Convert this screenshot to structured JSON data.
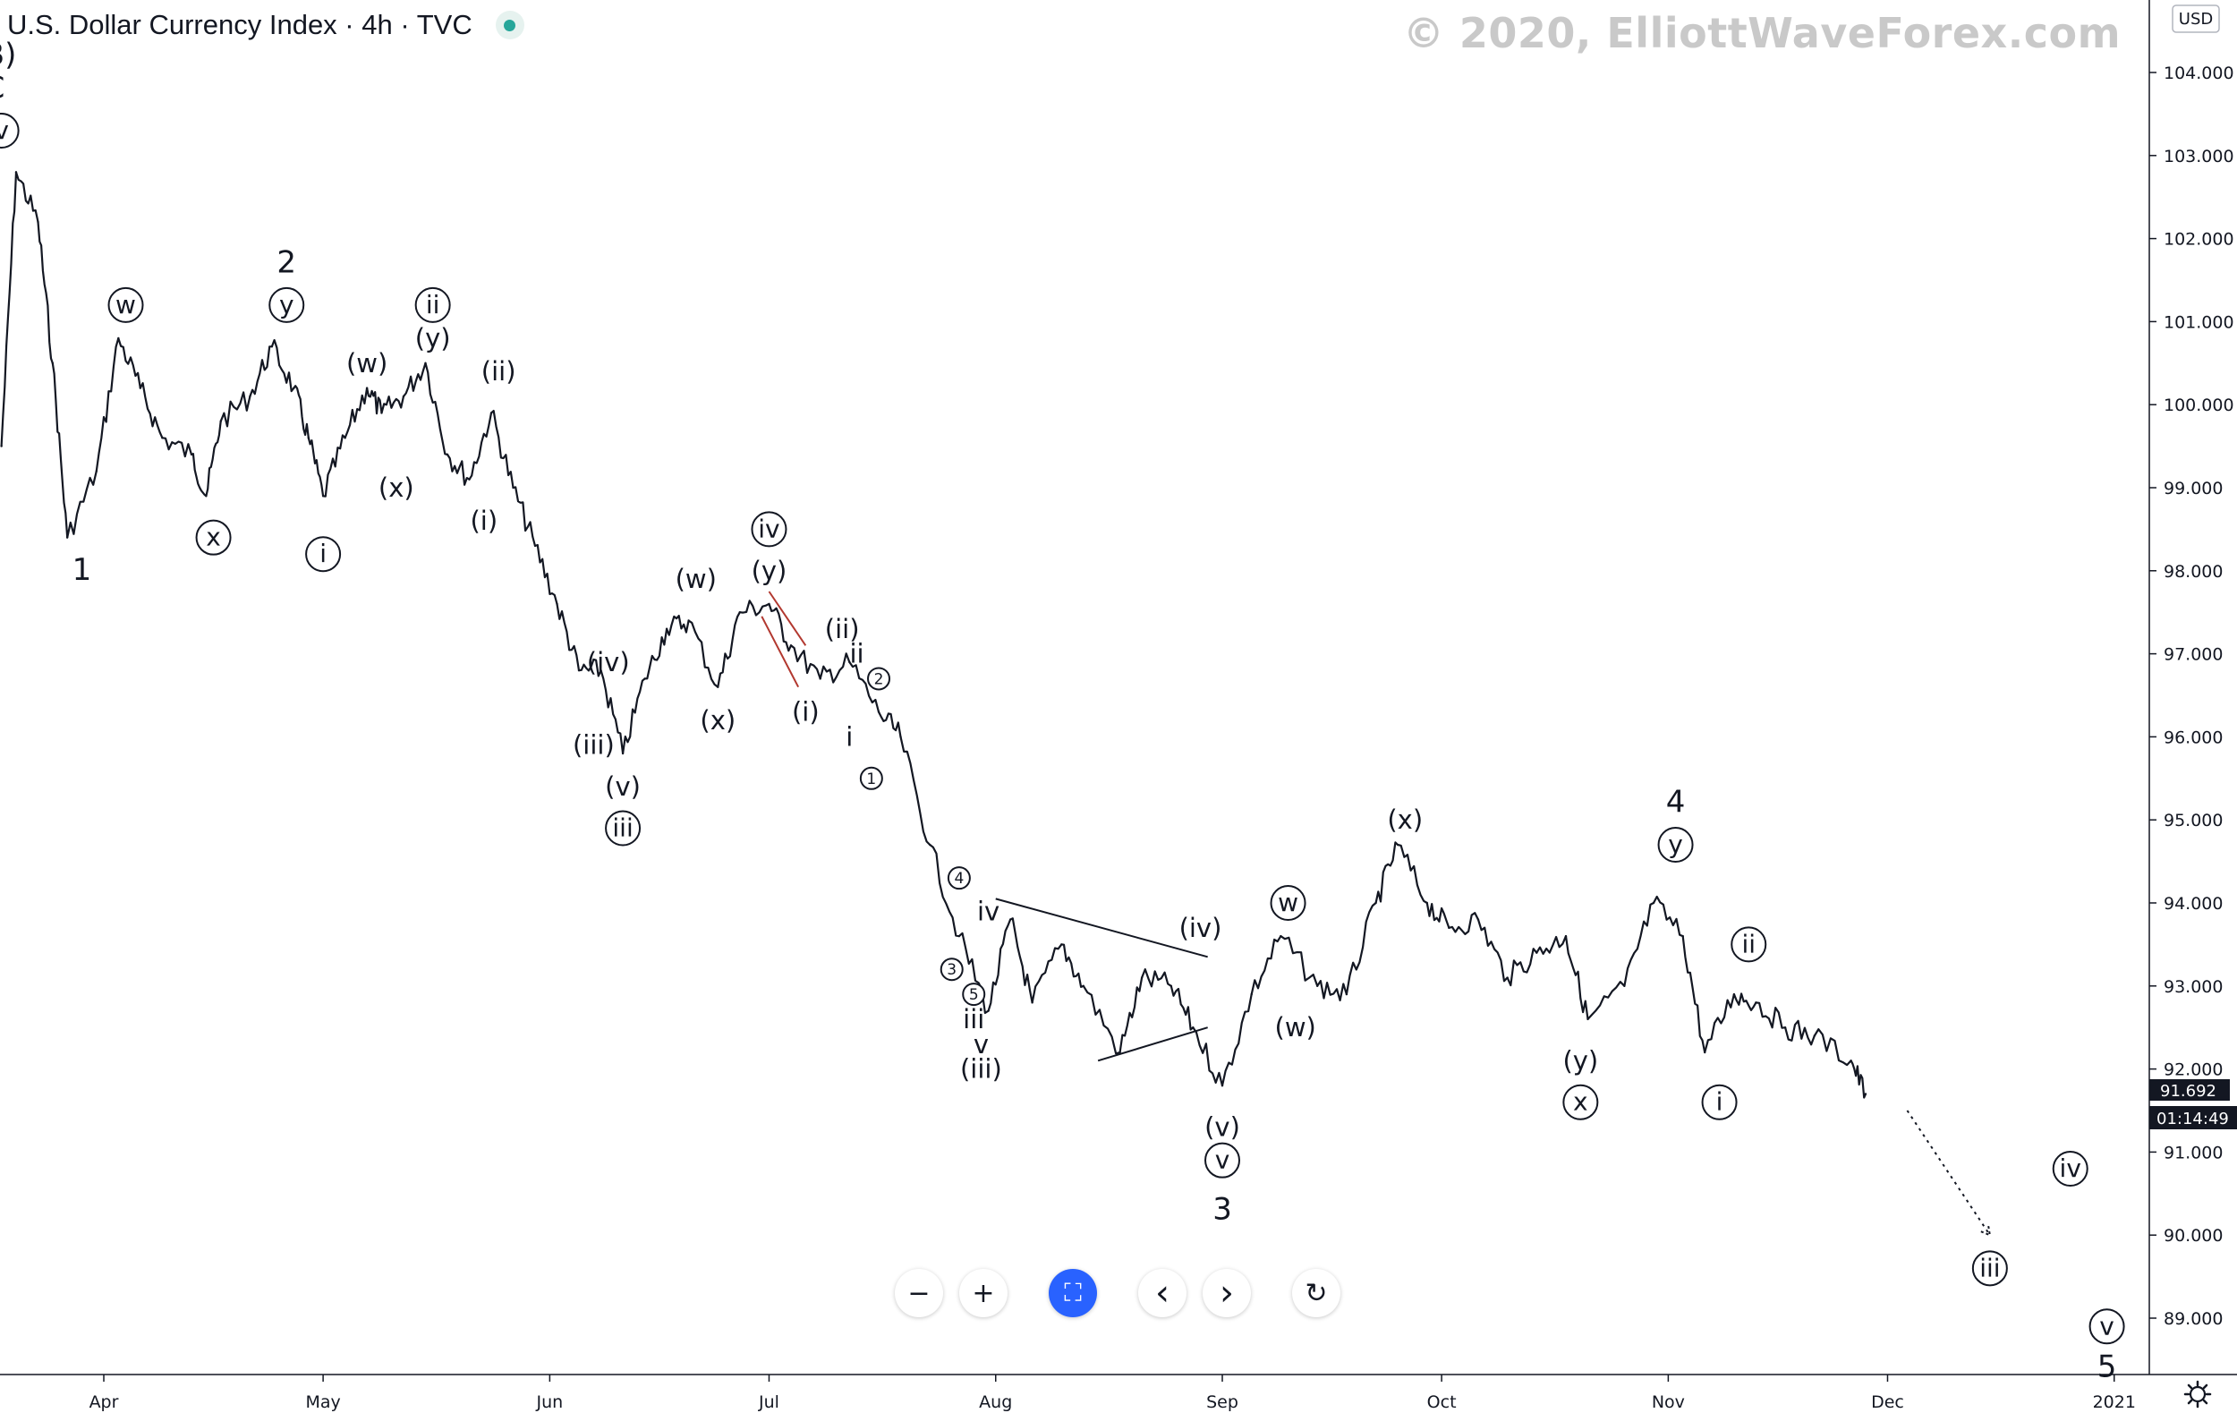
{
  "header": {
    "symbol_title": "U.S. Dollar Currency Index · 4h · TVC"
  },
  "watermark": "© 2020, ElliottWaveForex.com",
  "price_axis": {
    "currency_badge": "USD",
    "last_price": "91.692",
    "countdown": "01:14:49",
    "last_price_color": "#131722"
  },
  "toolbar": {
    "zoom_out": "−",
    "zoom_in": "+",
    "reset_fit": "⛶",
    "scroll_left": "‹",
    "scroll_right": "›",
    "reset": "↻"
  },
  "chart_data": {
    "type": "line",
    "title": "U.S. Dollar Currency Index · 4h · TVC",
    "xlabel": "",
    "ylabel": "",
    "ylim": [
      88.3,
      104.6
    ],
    "y_ticks": [
      "104.000",
      "103.000",
      "102.000",
      "101.000",
      "100.000",
      "99.000",
      "98.000",
      "97.000",
      "96.000",
      "95.000",
      "94.000",
      "93.000",
      "92.000",
      "91.000",
      "90.000",
      "89.000"
    ],
    "x_ticks": [
      {
        "label": "Apr",
        "date": "2020-04-01"
      },
      {
        "label": "May",
        "date": "2020-05-01"
      },
      {
        "label": "Jun",
        "date": "2020-06-01"
      },
      {
        "label": "Jul",
        "date": "2020-07-01"
      },
      {
        "label": "Aug",
        "date": "2020-08-01"
      },
      {
        "label": "Sep",
        "date": "2020-09-01"
      },
      {
        "label": "Oct",
        "date": "2020-10-01"
      },
      {
        "label": "Nov",
        "date": "2020-11-01"
      },
      {
        "label": "Dec",
        "date": "2020-12-01"
      },
      {
        "label": "2021",
        "date": "2021-01-01"
      }
    ],
    "grid": false,
    "series": [
      {
        "values": [
          [
            "2020-03-18",
            99.5
          ],
          [
            "2020-03-20",
            102.8
          ],
          [
            "2020-03-23",
            102.2
          ],
          [
            "2020-03-25",
            100.5
          ],
          [
            "2020-03-27",
            98.4
          ],
          [
            "2020-03-31",
            99.2
          ],
          [
            "2020-04-03",
            100.8
          ],
          [
            "2020-04-06",
            100.2
          ],
          [
            "2020-04-09",
            99.6
          ],
          [
            "2020-04-13",
            99.4
          ],
          [
            "2020-04-15",
            98.9
          ],
          [
            "2020-04-17",
            99.8
          ],
          [
            "2020-04-21",
            100.1
          ],
          [
            "2020-04-24",
            100.7
          ],
          [
            "2020-04-27",
            100.2
          ],
          [
            "2020-04-29",
            99.6
          ],
          [
            "2020-05-01",
            98.9
          ],
          [
            "2020-05-04",
            99.6
          ],
          [
            "2020-05-07",
            100.2
          ],
          [
            "2020-05-09",
            99.9
          ],
          [
            "2020-05-12",
            100.1
          ],
          [
            "2020-05-15",
            100.5
          ],
          [
            "2020-05-18",
            99.4
          ],
          [
            "2020-05-21",
            99.1
          ],
          [
            "2020-05-24",
            99.9
          ],
          [
            "2020-05-27",
            99.0
          ],
          [
            "2020-05-30",
            98.3
          ],
          [
            "2020-06-02",
            97.6
          ],
          [
            "2020-06-05",
            96.8
          ],
          [
            "2020-06-08",
            96.8
          ],
          [
            "2020-06-11",
            95.8
          ],
          [
            "2020-06-14",
            96.7
          ],
          [
            "2020-06-17",
            97.3
          ],
          [
            "2020-06-20",
            97.4
          ],
          [
            "2020-06-24",
            96.6
          ],
          [
            "2020-06-27",
            97.5
          ],
          [
            "2020-07-01",
            97.6
          ],
          [
            "2020-07-04",
            97.1
          ],
          [
            "2020-07-08",
            96.7
          ],
          [
            "2020-07-12",
            96.9
          ],
          [
            "2020-07-16",
            96.3
          ],
          [
            "2020-07-19",
            96.0
          ],
          [
            "2020-07-23",
            94.7
          ],
          [
            "2020-07-27",
            93.6
          ],
          [
            "2020-07-31",
            92.7
          ],
          [
            "2020-08-03",
            93.8
          ],
          [
            "2020-08-06",
            92.8
          ],
          [
            "2020-08-10",
            93.5
          ],
          [
            "2020-08-13",
            93.0
          ],
          [
            "2020-08-18",
            92.2
          ],
          [
            "2020-08-21",
            93.1
          ],
          [
            "2020-08-25",
            93.0
          ],
          [
            "2020-08-28",
            92.5
          ],
          [
            "2020-09-01",
            91.8
          ],
          [
            "2020-09-05",
            92.9
          ],
          [
            "2020-09-09",
            93.6
          ],
          [
            "2020-09-14",
            93.0
          ],
          [
            "2020-09-18",
            92.9
          ],
          [
            "2020-09-22",
            94.0
          ],
          [
            "2020-09-25",
            94.7
          ],
          [
            "2020-09-29",
            94.0
          ],
          [
            "2020-10-02",
            93.7
          ],
          [
            "2020-10-06",
            93.8
          ],
          [
            "2020-10-10",
            93.1
          ],
          [
            "2020-10-14",
            93.4
          ],
          [
            "2020-10-18",
            93.6
          ],
          [
            "2020-10-21",
            92.6
          ],
          [
            "2020-10-26",
            93.0
          ],
          [
            "2020-10-30",
            94.0
          ],
          [
            "2020-11-03",
            93.6
          ],
          [
            "2020-11-06",
            92.2
          ],
          [
            "2020-11-10",
            92.9
          ],
          [
            "2020-11-13",
            92.8
          ],
          [
            "2020-11-17",
            92.5
          ],
          [
            "2020-11-21",
            92.4
          ],
          [
            "2020-11-26",
            92.1
          ],
          [
            "2020-11-28",
            91.7
          ]
        ]
      }
    ],
    "projection": [
      [
        "2020-12-01",
        91.5
      ],
      [
        "2020-12-15",
        90.0
      ]
    ],
    "trendlines": [
      {
        "from": [
          "2020-08-01",
          94.05
        ],
        "to": [
          "2020-08-30",
          93.35
        ],
        "color": "#131722"
      },
      {
        "from": [
          "2020-08-15",
          92.1
        ],
        "to": [
          "2020-08-30",
          92.5
        ],
        "color": "#131722"
      },
      {
        "from": [
          "2020-07-01",
          97.75
        ],
        "to": [
          "2020-07-06",
          97.1
        ],
        "color": "#b2382f"
      },
      {
        "from": [
          "2020-06-30",
          97.45
        ],
        "to": [
          "2020-07-05",
          96.6
        ],
        "color": "#b2382f"
      }
    ],
    "annotations": [
      {
        "text": "(B)",
        "date": "2020-03-17",
        "y": 104.2,
        "style": "plain",
        "size": "l"
      },
      {
        "text": "C",
        "date": "2020-03-17",
        "y": 103.8,
        "style": "plain",
        "size": "l"
      },
      {
        "text": "v",
        "date": "2020-03-18",
        "y": 103.3,
        "style": "circle"
      },
      {
        "text": "1",
        "date": "2020-03-29",
        "y": 98.0,
        "style": "plain",
        "size": "l"
      },
      {
        "text": "w",
        "date": "2020-04-04",
        "y": 101.2,
        "style": "circle"
      },
      {
        "text": "x",
        "date": "2020-04-16",
        "y": 98.4,
        "style": "circle"
      },
      {
        "text": "2",
        "date": "2020-04-26",
        "y": 101.7,
        "style": "plain",
        "size": "l"
      },
      {
        "text": "y",
        "date": "2020-04-26",
        "y": 101.2,
        "style": "circle"
      },
      {
        "text": "i",
        "date": "2020-05-01",
        "y": 98.2,
        "style": "circle"
      },
      {
        "text": "(w)",
        "date": "2020-05-07",
        "y": 100.5,
        "style": "plain"
      },
      {
        "text": "(x)",
        "date": "2020-05-11",
        "y": 99.0,
        "style": "plain"
      },
      {
        "text": "ii",
        "date": "2020-05-16",
        "y": 101.2,
        "style": "circle"
      },
      {
        "text": "(y)",
        "date": "2020-05-16",
        "y": 100.8,
        "style": "plain"
      },
      {
        "text": "(ii)",
        "date": "2020-05-25",
        "y": 100.4,
        "style": "plain"
      },
      {
        "text": "(i)",
        "date": "2020-05-23",
        "y": 98.6,
        "style": "plain"
      },
      {
        "text": "(iv)",
        "date": "2020-06-09",
        "y": 96.9,
        "style": "plain"
      },
      {
        "text": "(iii)",
        "date": "2020-06-07",
        "y": 95.9,
        "style": "plain"
      },
      {
        "text": "(v)",
        "date": "2020-06-11",
        "y": 95.4,
        "style": "plain"
      },
      {
        "text": "iii",
        "date": "2020-06-11",
        "y": 94.9,
        "style": "circle"
      },
      {
        "text": "(w)",
        "date": "2020-06-21",
        "y": 97.9,
        "style": "plain"
      },
      {
        "text": "(x)",
        "date": "2020-06-24",
        "y": 96.2,
        "style": "plain"
      },
      {
        "text": "iv",
        "date": "2020-07-01",
        "y": 98.5,
        "style": "circle"
      },
      {
        "text": "(y)",
        "date": "2020-07-01",
        "y": 98.0,
        "style": "plain"
      },
      {
        "text": "(i)",
        "date": "2020-07-06",
        "y": 96.3,
        "style": "plain"
      },
      {
        "text": "(ii)",
        "date": "2020-07-11",
        "y": 97.3,
        "style": "plain"
      },
      {
        "text": "ii",
        "date": "2020-07-13",
        "y": 97.0,
        "style": "plain"
      },
      {
        "text": "i",
        "date": "2020-07-12",
        "y": 96.0,
        "style": "plain"
      },
      {
        "text": "2",
        "date": "2020-07-16",
        "y": 96.7,
        "style": "circle",
        "size": "s"
      },
      {
        "text": "1",
        "date": "2020-07-15",
        "y": 95.5,
        "style": "circle",
        "size": "s"
      },
      {
        "text": "4",
        "date": "2020-07-27",
        "y": 94.3,
        "style": "circle",
        "size": "s"
      },
      {
        "text": "iv",
        "date": "2020-07-31",
        "y": 93.9,
        "style": "plain"
      },
      {
        "text": "3",
        "date": "2020-07-26",
        "y": 93.2,
        "style": "circle",
        "size": "s"
      },
      {
        "text": "5",
        "date": "2020-07-29",
        "y": 92.9,
        "style": "circle",
        "size": "s"
      },
      {
        "text": "iii",
        "date": "2020-07-29",
        "y": 92.6,
        "style": "plain"
      },
      {
        "text": "v",
        "date": "2020-07-30",
        "y": 92.3,
        "style": "plain"
      },
      {
        "text": "(iii)",
        "date": "2020-07-30",
        "y": 92.0,
        "style": "plain"
      },
      {
        "text": "(iv)",
        "date": "2020-08-29",
        "y": 93.7,
        "style": "plain"
      },
      {
        "text": "(v)",
        "date": "2020-09-01",
        "y": 91.3,
        "style": "plain"
      },
      {
        "text": "v",
        "date": "2020-09-01",
        "y": 90.9,
        "style": "circle"
      },
      {
        "text": "3",
        "date": "2020-09-01",
        "y": 90.3,
        "style": "plain",
        "size": "l"
      },
      {
        "text": "w",
        "date": "2020-09-10",
        "y": 94.0,
        "style": "circle"
      },
      {
        "text": "(w)",
        "date": "2020-09-11",
        "y": 92.5,
        "style": "plain"
      },
      {
        "text": "(x)",
        "date": "2020-09-26",
        "y": 95.0,
        "style": "plain"
      },
      {
        "text": "4",
        "date": "2020-11-02",
        "y": 95.2,
        "style": "plain",
        "size": "l"
      },
      {
        "text": "y",
        "date": "2020-11-02",
        "y": 94.7,
        "style": "circle"
      },
      {
        "text": "(y)",
        "date": "2020-10-20",
        "y": 92.1,
        "style": "plain"
      },
      {
        "text": "x",
        "date": "2020-10-20",
        "y": 91.6,
        "style": "circle"
      },
      {
        "text": "ii",
        "date": "2020-11-12",
        "y": 93.5,
        "style": "circle"
      },
      {
        "text": "i",
        "date": "2020-11-08",
        "y": 91.6,
        "style": "circle"
      },
      {
        "text": "iii",
        "date": "2020-12-15",
        "y": 89.6,
        "style": "circle"
      },
      {
        "text": "iv",
        "date": "2020-12-26",
        "y": 90.8,
        "style": "circle"
      },
      {
        "text": "v",
        "date": "2020-12-31",
        "y": 88.9,
        "style": "circle"
      },
      {
        "text": "5",
        "date": "2020-12-31",
        "y": 88.4,
        "style": "plain",
        "size": "l"
      }
    ]
  }
}
